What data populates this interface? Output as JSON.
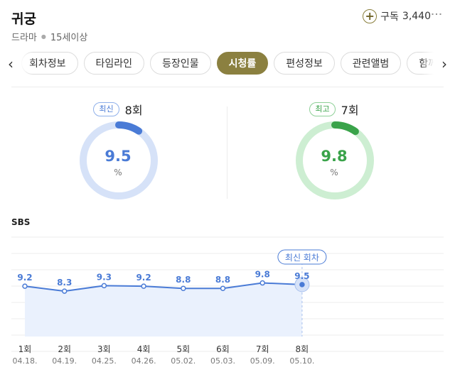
{
  "header": {
    "title": "귀궁",
    "genre": "드라마",
    "rating": "15세이상",
    "subscribe_label": "구독",
    "subscribe_count": "3,440"
  },
  "tabs": [
    {
      "label": "회차정보",
      "active": false
    },
    {
      "label": "타임라인",
      "active": false
    },
    {
      "label": "등장인물",
      "active": false
    },
    {
      "label": "시청률",
      "active": true
    },
    {
      "label": "편성정보",
      "active": false
    },
    {
      "label": "관련앨범",
      "active": false
    },
    {
      "label": "함께 볼만한",
      "active": false
    }
  ],
  "stats": {
    "latest": {
      "badge": "최신",
      "episode": "8회",
      "value": "9.5",
      "unit": "%",
      "fraction": 0.095,
      "color": "#4a7bd6"
    },
    "best": {
      "badge": "최고",
      "episode": "7회",
      "value": "9.8",
      "unit": "%",
      "fraction": 0.098,
      "color": "#3aa34a"
    }
  },
  "chart_data": {
    "type": "area",
    "title": "SBS",
    "annotation": "최신 회차",
    "ylim": [
      0,
      20
    ],
    "categories": [
      "1회",
      "2회",
      "3회",
      "4회",
      "5회",
      "6회",
      "7회",
      "8회"
    ],
    "dates": [
      "04.18.",
      "04.19.",
      "04.25.",
      "04.26.",
      "05.02.",
      "05.03.",
      "05.09.",
      "05.10."
    ],
    "values": [
      9.2,
      8.3,
      9.3,
      9.2,
      8.8,
      8.8,
      9.8,
      9.5
    ],
    "line_color": "#4a7bd6",
    "fill_color": "#eaf1fd",
    "grid": true
  }
}
